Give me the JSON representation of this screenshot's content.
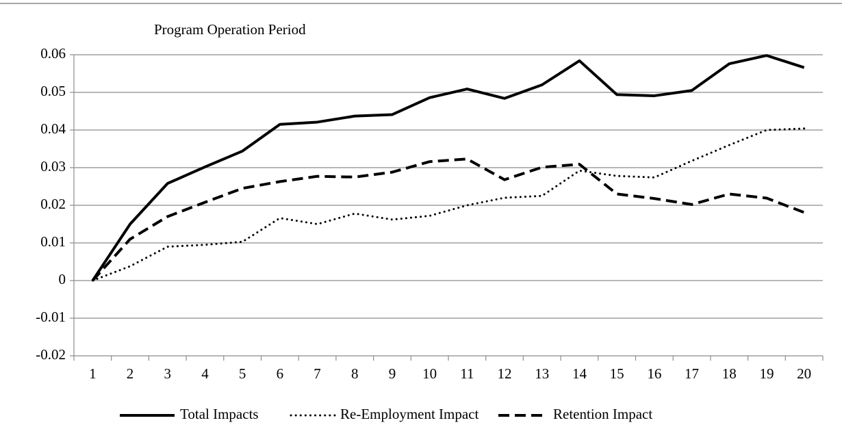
{
  "chart_data": {
    "type": "line",
    "title": "Program Operation Period",
    "categories": [
      "1",
      "2",
      "3",
      "4",
      "5",
      "6",
      "7",
      "8",
      "9",
      "10",
      "11",
      "12",
      "13",
      "14",
      "15",
      "16",
      "17",
      "18",
      "19",
      "20"
    ],
    "series": [
      {
        "name": "Total Impacts",
        "color": "#000000",
        "dash": "solid",
        "values": [
          0,
          0.015,
          0.0258,
          0.0302,
          0.0344,
          0.0415,
          0.0421,
          0.0437,
          0.0441,
          0.0486,
          0.0509,
          0.0484,
          0.052,
          0.0584,
          0.0494,
          0.0491,
          0.0505,
          0.0576,
          0.0598,
          0.0566
        ]
      },
      {
        "name": "Re-Employment Impact",
        "color": "#000000",
        "dash": "dotted",
        "values": [
          0,
          0.0038,
          0.009,
          0.0095,
          0.0103,
          0.0166,
          0.015,
          0.0178,
          0.0162,
          0.0172,
          0.02,
          0.022,
          0.0225,
          0.0292,
          0.0278,
          0.0274,
          0.0318,
          0.036,
          0.04,
          0.0404
        ]
      },
      {
        "name": "Retention Impact",
        "color": "#000000",
        "dash": "dashed",
        "values": [
          0,
          0.011,
          0.017,
          0.0208,
          0.0245,
          0.0263,
          0.0277,
          0.0275,
          0.0288,
          0.0316,
          0.0323,
          0.0268,
          0.0301,
          0.0309,
          0.023,
          0.0218,
          0.0202,
          0.023,
          0.0219,
          0.0181
        ]
      }
    ],
    "ylim": [
      -0.02,
      0.06
    ],
    "yticks": [
      -0.02,
      -0.01,
      0,
      0.01,
      0.02,
      0.03,
      0.04,
      0.05,
      0.06
    ],
    "grid": true,
    "legend": "bottom"
  }
}
